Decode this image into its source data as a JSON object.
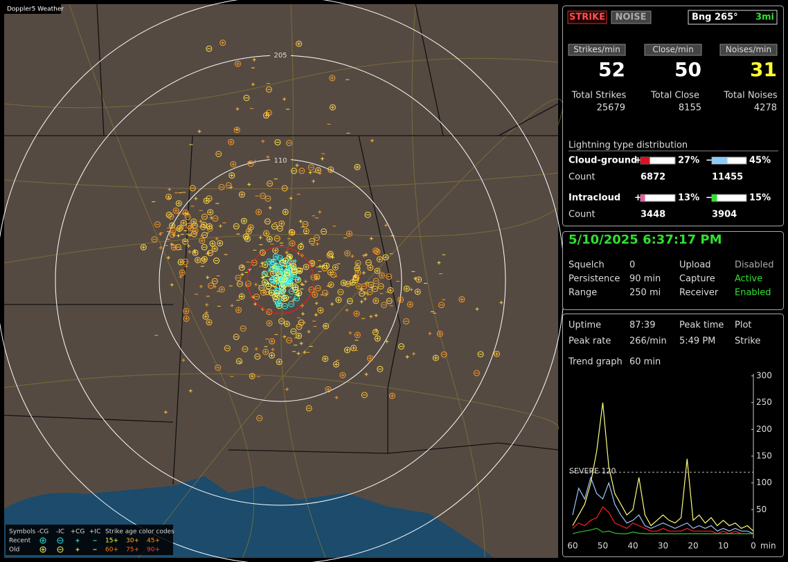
{
  "map": {
    "title": "Doppler5 Weather",
    "ring_labels": [
      "205",
      "110"
    ],
    "legend": {
      "symbols_label": "Symbols",
      "symbols": [
        "-CG",
        "-IC",
        "+CG",
        "+IC"
      ],
      "age_label": "Strike age color codes",
      "recent_label": "Recent",
      "old_label": "Old",
      "recent_ages": [
        "15+",
        "30+",
        "45+"
      ],
      "old_ages": [
        "60+",
        "75+",
        "90+"
      ]
    }
  },
  "status": {
    "strike_button": "STRIKE",
    "noise_button": "NOISE",
    "bearing": "Bng 265°",
    "distance": "3mi",
    "rates": [
      {
        "label": "Strikes/min",
        "value": 52
      },
      {
        "label": "Close/min",
        "value": 50
      },
      {
        "label": "Noises/min",
        "value": 31
      }
    ],
    "totals": [
      {
        "label": "Total Strikes",
        "value": 25679
      },
      {
        "label": "Total Close",
        "value": 8155
      },
      {
        "label": "Total Noises",
        "value": 4278
      }
    ],
    "distribution": {
      "title": "Lightning type distribution",
      "count_label": "Count",
      "rows": [
        {
          "label": "Cloud-ground",
          "plus": {
            "sign": "+",
            "value": 27,
            "label": "27%",
            "count": 6872
          },
          "minus": {
            "sign": "−",
            "value": 45,
            "label": "45%",
            "count": 11455
          }
        },
        {
          "label": "Intracloud",
          "plus": {
            "sign": "+",
            "value": 13,
            "label": "13%",
            "count": 3448
          },
          "minus": {
            "sign": "−",
            "value": 15,
            "label": "15%",
            "count": 3904
          }
        }
      ]
    }
  },
  "settings": {
    "datetime": "5/10/2025 6:37:17 PM",
    "rows": [
      [
        "Squelch",
        "0",
        "Upload",
        "Disabled"
      ],
      [
        "Persistence",
        "90 min",
        "Capture",
        "Active"
      ],
      [
        "Range",
        "250 mi",
        "Receiver",
        "Enabled"
      ]
    ]
  },
  "uptime": {
    "rows": [
      [
        "Uptime",
        "87:39",
        "Peak time",
        "Plot"
      ],
      [
        "Peak rate",
        "266/min",
        "5:49 PM",
        "Strike"
      ]
    ],
    "trend_label": "Trend graph",
    "trend_window": "60 min"
  },
  "chart_data": {
    "type": "line",
    "x_unit": "min",
    "x": [
      60,
      58,
      56,
      54,
      52,
      50,
      48,
      46,
      44,
      42,
      40,
      38,
      36,
      34,
      32,
      30,
      28,
      26,
      24,
      22,
      20,
      18,
      16,
      14,
      12,
      10,
      8,
      6,
      4,
      2,
      0
    ],
    "xlim": [
      60,
      0
    ],
    "xticks": [
      60,
      50,
      40,
      30,
      20,
      10,
      0
    ],
    "ylim": [
      0,
      300
    ],
    "yticks": [
      50,
      100,
      150,
      200,
      250,
      300
    ],
    "severe": {
      "label": "SEVERE 120",
      "value": 120
    },
    "series": [
      {
        "color": "#9ec8ff",
        "values": [
          40,
          90,
          70,
          110,
          80,
          70,
          100,
          60,
          40,
          25,
          30,
          40,
          20,
          15,
          20,
          25,
          20,
          15,
          20,
          25,
          15,
          20,
          15,
          20,
          10,
          15,
          10,
          15,
          10,
          10,
          5
        ]
      },
      {
        "color": "#ff2020",
        "values": [
          15,
          25,
          20,
          30,
          35,
          55,
          45,
          25,
          20,
          15,
          25,
          20,
          15,
          10,
          10,
          15,
          10,
          10,
          10,
          15,
          10,
          10,
          10,
          10,
          5,
          10,
          5,
          10,
          5,
          5,
          5
        ]
      },
      {
        "color": "#30c030",
        "values": [
          5,
          8,
          10,
          12,
          15,
          8,
          10,
          6,
          5,
          5,
          8,
          6,
          5,
          5,
          5,
          5,
          5,
          5,
          5,
          5,
          5,
          5,
          5,
          5,
          5,
          5,
          5,
          5,
          5,
          5,
          5
        ]
      },
      {
        "color": "#ffff80",
        "values": [
          20,
          40,
          60,
          100,
          160,
          250,
          130,
          80,
          60,
          40,
          50,
          110,
          40,
          20,
          30,
          40,
          30,
          25,
          35,
          145,
          30,
          40,
          25,
          35,
          20,
          30,
          20,
          25,
          15,
          20,
          10
        ]
      }
    ]
  }
}
